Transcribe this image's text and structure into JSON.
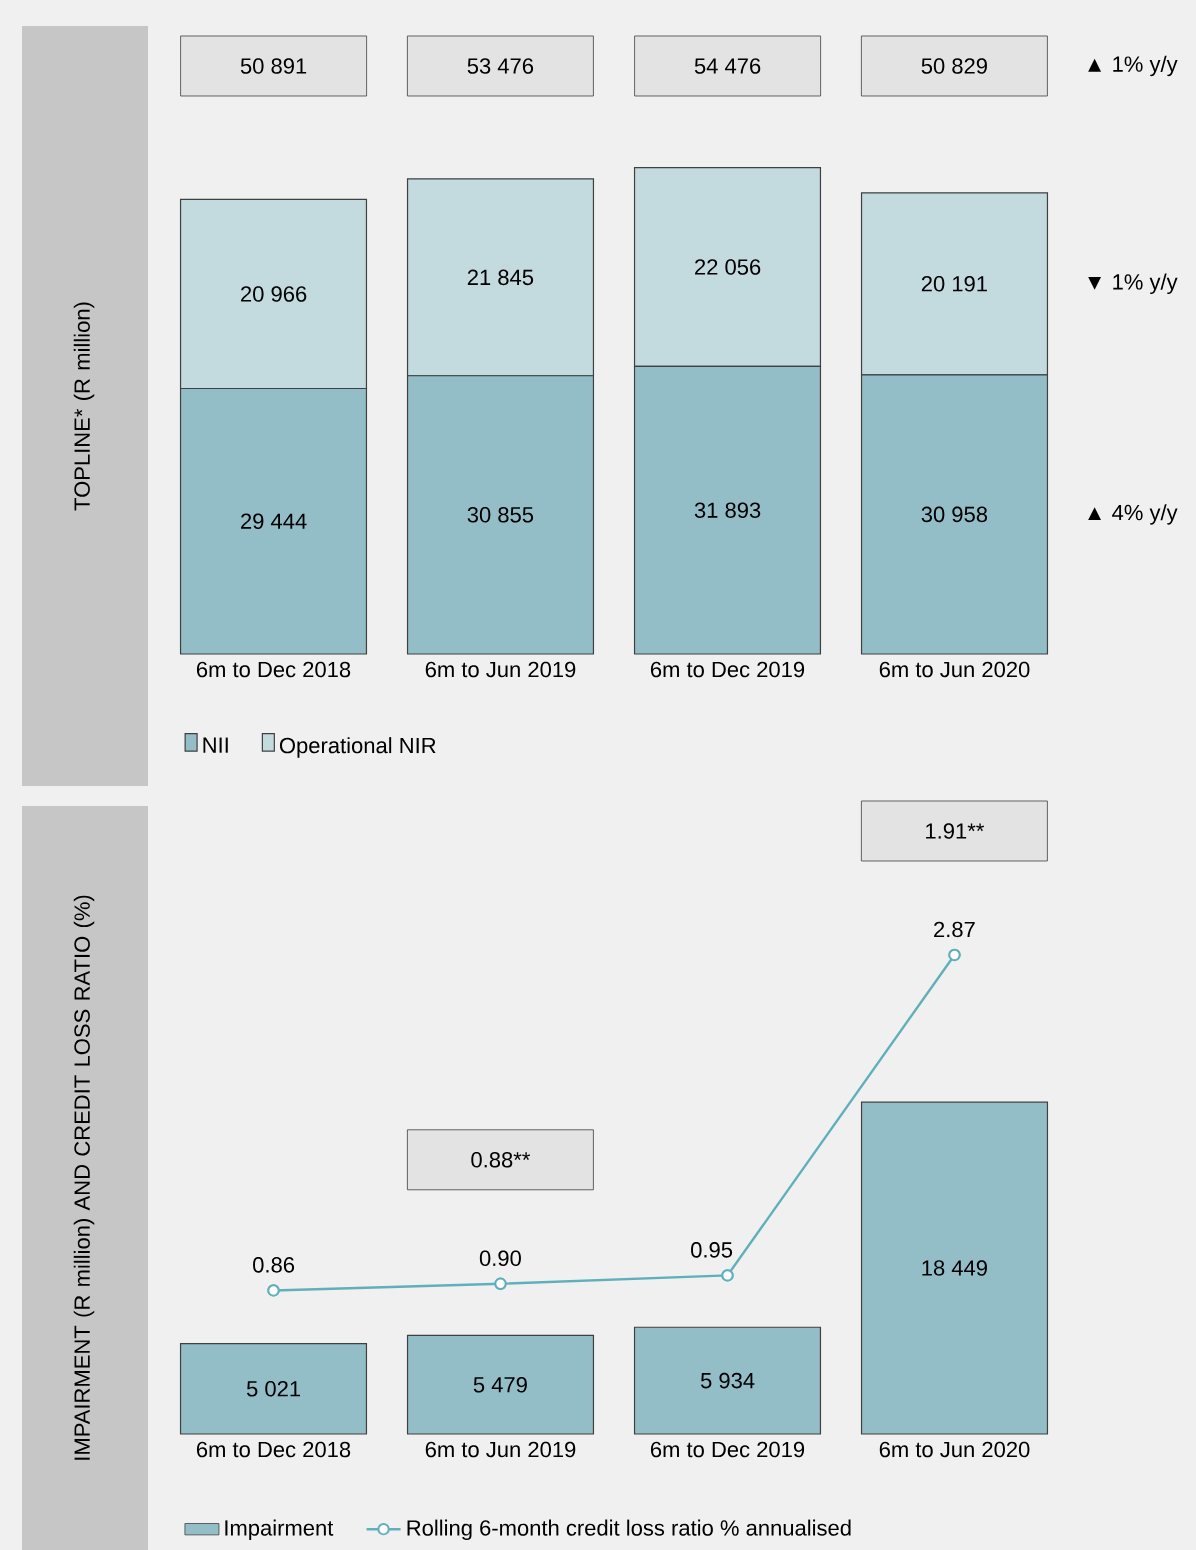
{
  "chart_data": [
    {
      "type": "bar",
      "stacked": true,
      "ylabel": "TOPLINE* (R million)",
      "categories": [
        "6m to Dec 2018",
        "6m to Jun 2019",
        "6m to Dec 2019",
        "6m to Jun 2020"
      ],
      "series": [
        {
          "name": "NII",
          "color": "#93bec8",
          "values": [
            29444,
            30855,
            31893,
            30958
          ],
          "value_labels": [
            "29 444",
            "30 855",
            "31 893",
            "30 958"
          ]
        },
        {
          "name": "Operational NIR",
          "color": "#c3dadf",
          "values": [
            20966,
            21845,
            22056,
            20191
          ],
          "value_labels": [
            "20 966",
            "21 845",
            "22 056",
            "20 191"
          ]
        }
      ],
      "legend": "bottom",
      "tick_labels": "x",
      "annotations": [
        "50 891",
        "53 476",
        "54 476",
        "50 829",
        "▲ 1% y/y",
        "▼ 1% y/y",
        "▲ 4% y/y"
      ]
    },
    {
      "type": "bar",
      "ylabel": "IMPAIRMENT (R million) AND CREDIT LOSS RATIO (%)",
      "categories": [
        "6m to Dec 2018",
        "6m to Jun 2019",
        "6m to Dec 2019",
        "6m to Jun 2020"
      ],
      "series": [
        {
          "name": "Impairment",
          "color": "#93bec8",
          "values": [
            5021,
            5479,
            5934,
            18449
          ],
          "value_labels": [
            "5 021",
            "5 479",
            "5 934",
            "18 449"
          ]
        },
        {
          "name": "Rolling 6-month credit loss ratio % annualised",
          "type": "line",
          "axis": "y2",
          "color": "#5fb0bb",
          "marker": "circle",
          "values": [
            0.86,
            0.9,
            0.95,
            2.87
          ],
          "value_labels": [
            "0.86",
            "0.90",
            "0.95",
            "2.87"
          ]
        }
      ],
      "legend": "bottom",
      "tick_labels": "x",
      "annotations": [
        "0.88**",
        "1.91**"
      ]
    }
  ]
}
